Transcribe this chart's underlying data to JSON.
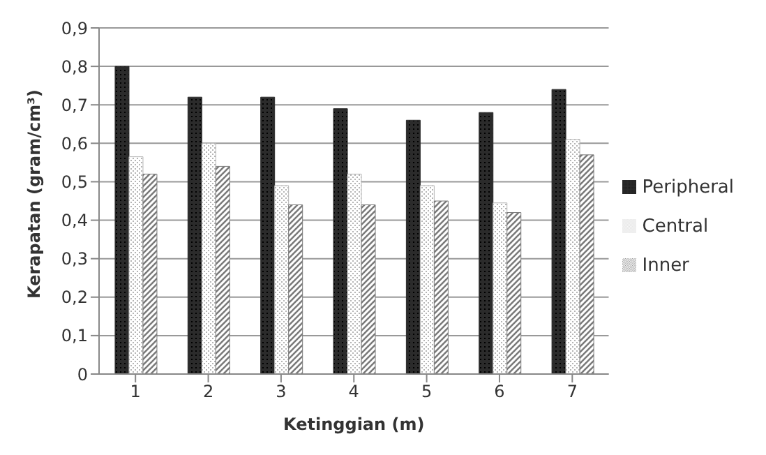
{
  "chart_data": {
    "type": "bar",
    "xlabel": "Ketinggian (m)",
    "ylabel": "Kerapatan (gram/cm³)",
    "categories": [
      "1",
      "2",
      "3",
      "4",
      "5",
      "6",
      "7"
    ],
    "series": [
      {
        "name": "Peripheral",
        "color": "#2b2b2b",
        "values": [
          0.8,
          0.72,
          0.72,
          0.69,
          0.66,
          0.68,
          0.74
        ]
      },
      {
        "name": "Central",
        "color": "#b5b5b5",
        "values": [
          0.565,
          0.6,
          0.49,
          0.52,
          0.49,
          0.445,
          0.61
        ]
      },
      {
        "name": "Inner",
        "color": "#7a7a7a",
        "values": [
          0.52,
          0.54,
          0.44,
          0.44,
          0.45,
          0.42,
          0.57
        ]
      }
    ],
    "ylim": [
      0,
      0.9
    ],
    "yticks": [
      {
        "value": 0,
        "label": "0"
      },
      {
        "value": 0.1,
        "label": "0,1"
      },
      {
        "value": 0.2,
        "label": "0,2"
      },
      {
        "value": 0.3,
        "label": "0,3"
      },
      {
        "value": 0.4,
        "label": "0,4"
      },
      {
        "value": 0.5,
        "label": "0,5"
      },
      {
        "value": 0.6,
        "label": "0,6"
      },
      {
        "value": 0.7,
        "label": "0,7"
      },
      {
        "value": 0.8,
        "label": "0,8"
      },
      {
        "value": 0.9,
        "label": "0,9"
      }
    ],
    "grid": "y",
    "legend": "right"
  }
}
